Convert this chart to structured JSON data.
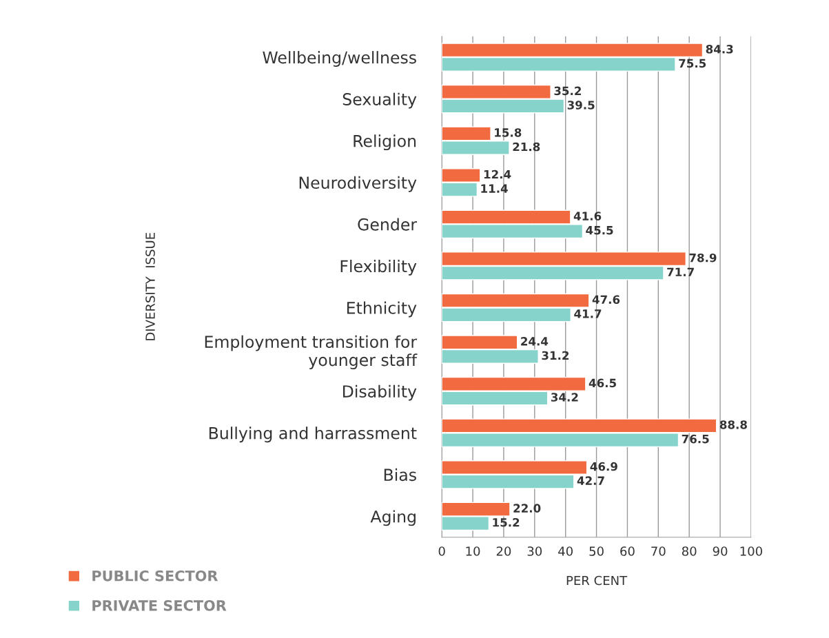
{
  "chart_data": {
    "type": "bar",
    "orientation": "horizontal",
    "xlabel": "PER CENT",
    "ylabel": "DIVERSITY  ISSUE",
    "categories": [
      "Wellbeing/wellness",
      "Sexuality",
      "Religion",
      "Neurodiversity",
      "Gender",
      "Flexibility",
      "Ethnicity",
      "Employment transition for\nyounger staff",
      "Disability",
      "Bullying and harrassment",
      "Bias",
      "Aging"
    ],
    "series": [
      {
        "name": "PUBLIC SECTOR",
        "color": "#f26a3f",
        "values": [
          84.3,
          35.2,
          15.8,
          12.4,
          41.6,
          78.9,
          47.6,
          24.4,
          46.5,
          88.8,
          46.9,
          22.0
        ],
        "value_labels": [
          "84.3",
          "35.2",
          "15.8",
          "12.4",
          "41.6",
          "78.9",
          "47.6",
          "24.4",
          "46.5",
          "88.8",
          "46.9",
          "22.0"
        ]
      },
      {
        "name": "PRIVATE SECTOR",
        "color": "#86d3cb",
        "values": [
          75.5,
          39.5,
          21.8,
          11.4,
          45.5,
          71.7,
          41.7,
          31.2,
          34.2,
          76.5,
          42.7,
          15.2
        ],
        "value_labels": [
          "75.5",
          "39.5",
          "21.8",
          "11.4",
          "45.5",
          "71.7",
          "41.7",
          "31.2",
          "34.2",
          "76.5",
          "42.7",
          "15.2"
        ]
      }
    ],
    "xlim": [
      0,
      100
    ],
    "xticks": [
      0,
      10,
      20,
      30,
      40,
      50,
      60,
      70,
      80,
      90,
      100
    ],
    "grid": "x",
    "legend": "bottom left"
  }
}
